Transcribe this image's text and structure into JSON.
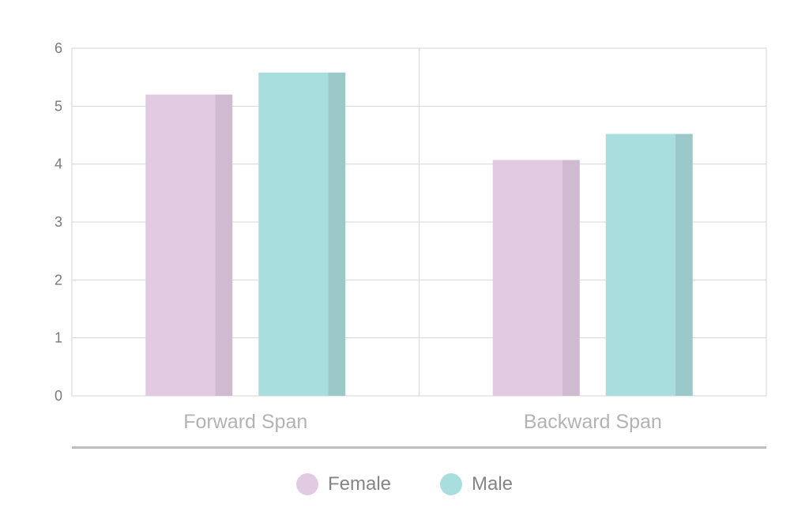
{
  "chart_data": {
    "type": "bar",
    "categories": [
      "Forward Span",
      "Backward Span"
    ],
    "series": [
      {
        "name": "Female",
        "values": [
          5.2,
          4.07
        ],
        "color": "#e2cbe2",
        "shade": "#d0bad0"
      },
      {
        "name": "Male",
        "values": [
          5.58,
          4.52
        ],
        "color": "#a9dede",
        "shade": "#9bc8c8"
      }
    ],
    "title": "",
    "xlabel": "",
    "ylabel": "",
    "ylim": [
      0,
      6
    ],
    "yticks": [
      "0",
      "1",
      "2",
      "3",
      "4",
      "5",
      "6"
    ],
    "grid": true,
    "legend_position": "bottom-center",
    "colors": {
      "grid": "#d6d6d6",
      "axis_bar": "#bdbdbd"
    }
  }
}
